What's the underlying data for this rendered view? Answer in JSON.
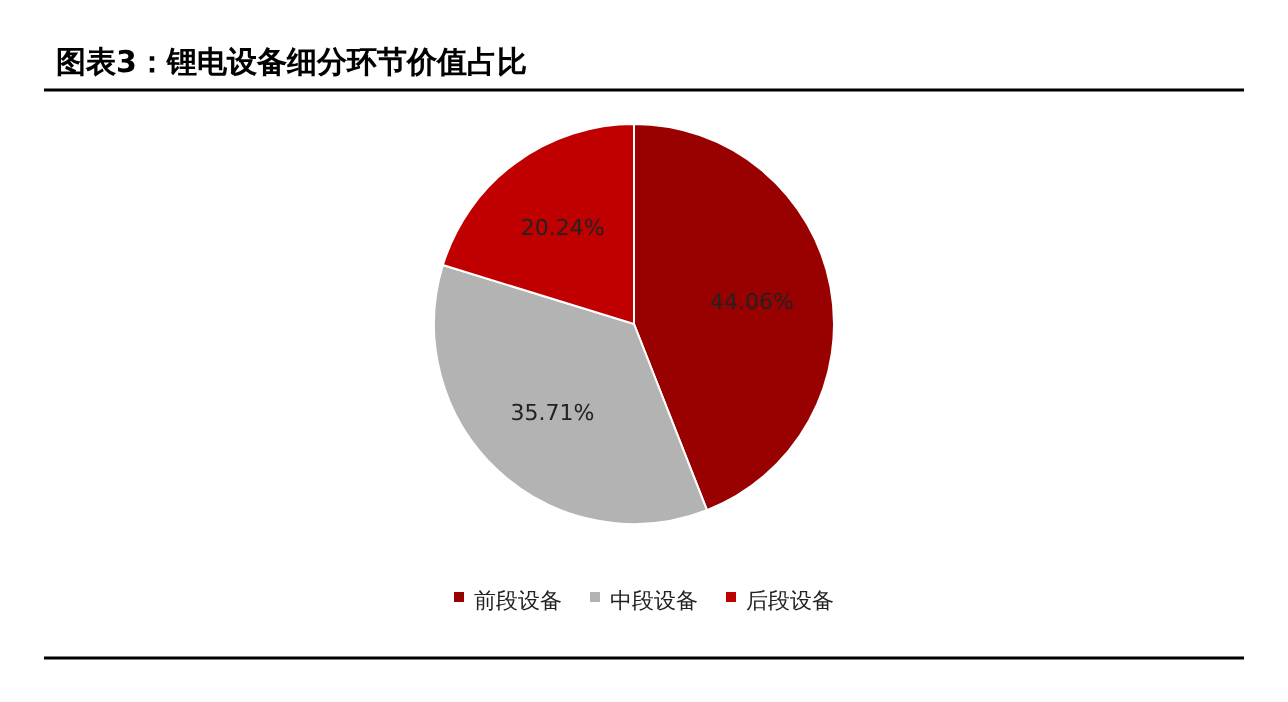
{
  "chart_data": {
    "type": "pie",
    "title": "图表3：锂电设备细分环节价值占比",
    "categories": [
      "前段设备",
      "中段设备",
      "后段设备"
    ],
    "values": [
      44.06,
      35.71,
      20.24
    ],
    "colors": [
      "#990000",
      "#b3b3b3",
      "#c00000"
    ],
    "value_labels": [
      "44.06%",
      "35.71%",
      "20.24%"
    ],
    "legend": "bottom"
  }
}
